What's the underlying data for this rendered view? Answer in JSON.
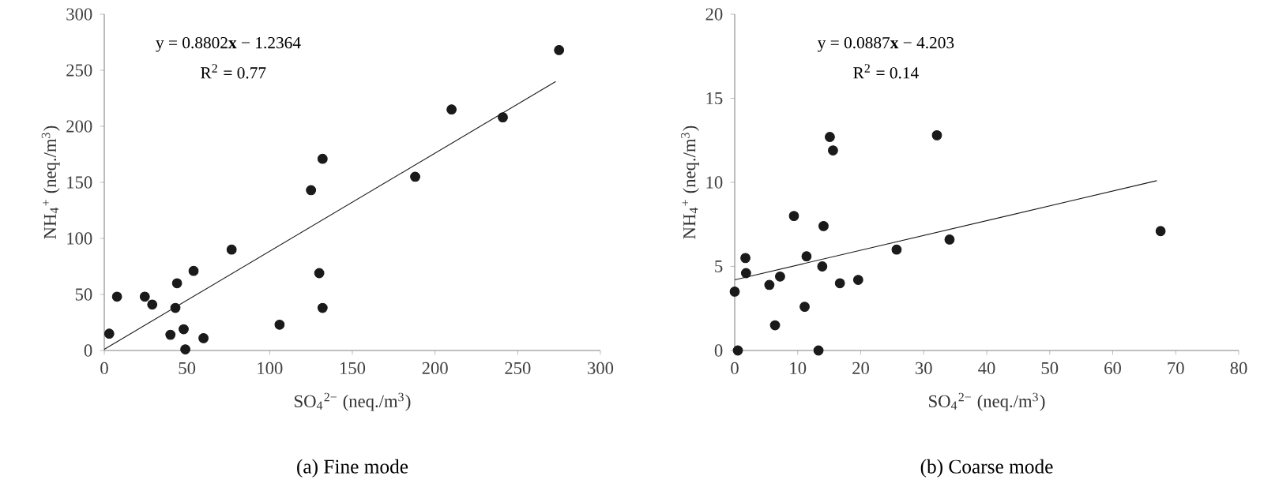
{
  "chart_data": [
    {
      "type": "scatter",
      "title": "(a) Fine mode",
      "xlabel": "SO$_{4}$$^{2−}$ (neq./m$^{3}$)",
      "ylabel": "NH$_{4}$$^{+}$ (neq./m$^{3}$)",
      "xlim": [
        0,
        300
      ],
      "xticks": [
        0,
        50,
        100,
        150,
        200,
        250,
        300
      ],
      "ylim": [
        0,
        300
      ],
      "yticks": [
        0,
        50,
        100,
        150,
        200,
        250,
        300
      ],
      "annotations": [
        "y = 0.8802**x** − 1.2364",
        "R$^{2}$ = 0.77"
      ],
      "series": [
        {
          "color": "#1a1a1a",
          "marker": "circle",
          "x": [
            3,
            7.7,
            24.5,
            29,
            43,
            44,
            40,
            48,
            49,
            54,
            60,
            77,
            106,
            125,
            132,
            130,
            132,
            188,
            210,
            241,
            275
          ],
          "values": [
            15,
            48,
            48,
            41,
            38,
            60,
            14,
            19,
            1,
            71,
            11,
            90,
            23,
            143,
            171,
            69,
            38,
            155,
            215,
            208,
            268
          ]
        },
        {
          "type": "line",
          "color": "#1a1a1a",
          "marker": "none",
          "x": [
            0,
            273
          ],
          "values": [
            1,
            240
          ]
        }
      ]
    },
    {
      "type": "scatter",
      "title": "(b) Coarse mode",
      "xlabel": "SO$_{4}$$^{2−}$ (neq./m$^{3}$)",
      "ylabel": "NH$_{4}$$^{+}$ (neq./m$^{3}$)",
      "xlim": [
        0,
        80
      ],
      "xticks": [
        0,
        10,
        20,
        30,
        40,
        50,
        60,
        70,
        80
      ],
      "ylim": [
        0,
        20
      ],
      "yticks": [
        0,
        5,
        10,
        15,
        20
      ],
      "annotations": [
        "y = 0.0887**x** − 4.203",
        "R$^{2}$ = 0.14"
      ],
      "series": [
        {
          "color": "#1a1a1a",
          "marker": "circle",
          "x": [
            0,
            0.5,
            1.7,
            1.8,
            5.5,
            6.4,
            7.2,
            9.4,
            11.1,
            11.4,
            13.3,
            13.9,
            14.1,
            15.1,
            15.6,
            16.7,
            19.6,
            25.7,
            32.1,
            34.1,
            67.6
          ],
          "values": [
            3.5,
            0,
            5.5,
            4.6,
            3.9,
            1.5,
            4.4,
            8.0,
            2.6,
            5.6,
            0,
            5.0,
            7.4,
            12.7,
            11.9,
            4.0,
            4.2,
            6.0,
            12.8,
            6.6,
            7.1
          ]
        },
        {
          "type": "line",
          "color": "#1a1a1a",
          "marker": "none",
          "x": [
            0,
            67
          ],
          "values": [
            4.2,
            10.1
          ]
        }
      ]
    }
  ]
}
